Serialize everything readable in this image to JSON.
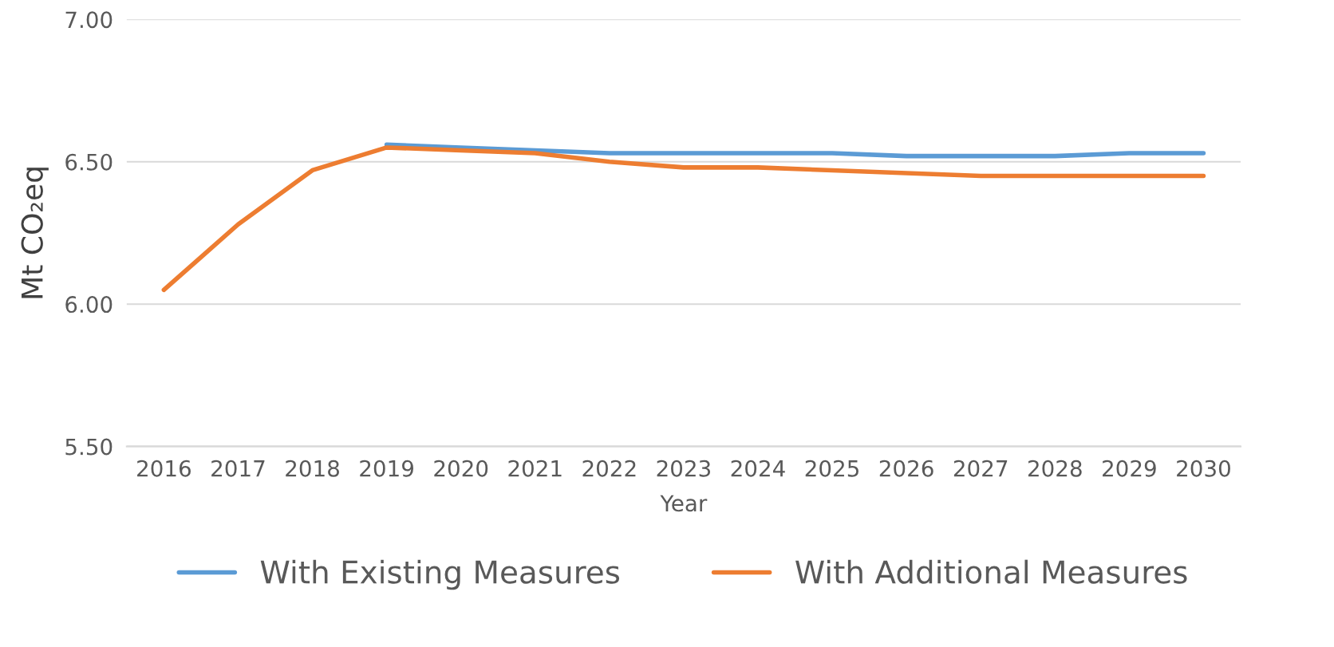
{
  "chart_data": {
    "type": "line",
    "xlabel": "Year",
    "ylabel": "Mt CO₂eq",
    "categories": [
      "2016",
      "2017",
      "2018",
      "2019",
      "2020",
      "2021",
      "2022",
      "2023",
      "2024",
      "2025",
      "2026",
      "2027",
      "2028",
      "2029",
      "2030"
    ],
    "series": [
      {
        "name": "With Existing Measures",
        "color": "#5b9bd5",
        "values": [
          null,
          null,
          null,
          6.56,
          6.55,
          6.54,
          6.53,
          6.53,
          6.53,
          6.53,
          6.52,
          6.52,
          6.52,
          6.53,
          6.53
        ]
      },
      {
        "name": "With Additional Measures",
        "color": "#ed7d31",
        "values": [
          6.05,
          6.28,
          6.47,
          6.55,
          6.54,
          6.53,
          6.5,
          6.48,
          6.48,
          6.47,
          6.46,
          6.45,
          6.45,
          6.45,
          6.45
        ]
      }
    ],
    "ylim": [
      5.5,
      7.0
    ],
    "yticks": [
      {
        "value": 5.5,
        "label": "5.50"
      },
      {
        "value": 6.0,
        "label": "6.00"
      },
      {
        "value": 6.5,
        "label": "6.50"
      },
      {
        "value": 7.0,
        "label": "7.00"
      }
    ],
    "grid": "y",
    "legend": "bottom",
    "marker": "none",
    "line_style": "solid"
  }
}
